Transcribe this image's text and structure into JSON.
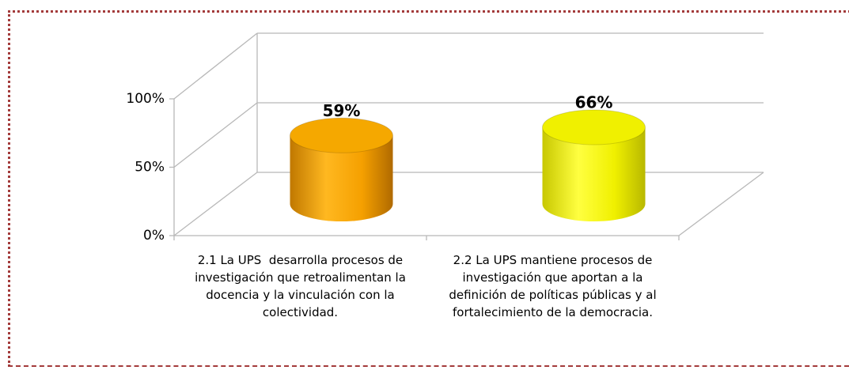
{
  "chart_data": {
    "type": "bar3d",
    "categories": [
      "2.1 La UPS  desarrolla procesos de investigación que retroalimentan la docencia y la vinculación con la colectividad.",
      "2.2 La UPS mantiene procesos de investigación que aportan a la definición de políticas públicas y al fortalecimiento de la democracia."
    ],
    "values": [
      59,
      66
    ],
    "value_labels": [
      "59%",
      "66%"
    ],
    "colors": [
      "#f5a800",
      "#f0f000"
    ],
    "ylim": [
      0,
      100
    ],
    "yticks": [
      {
        "value": 0,
        "label": "0%"
      },
      {
        "value": 50,
        "label": "50%"
      },
      {
        "value": 100,
        "label": "100%"
      }
    ],
    "grid": true
  }
}
